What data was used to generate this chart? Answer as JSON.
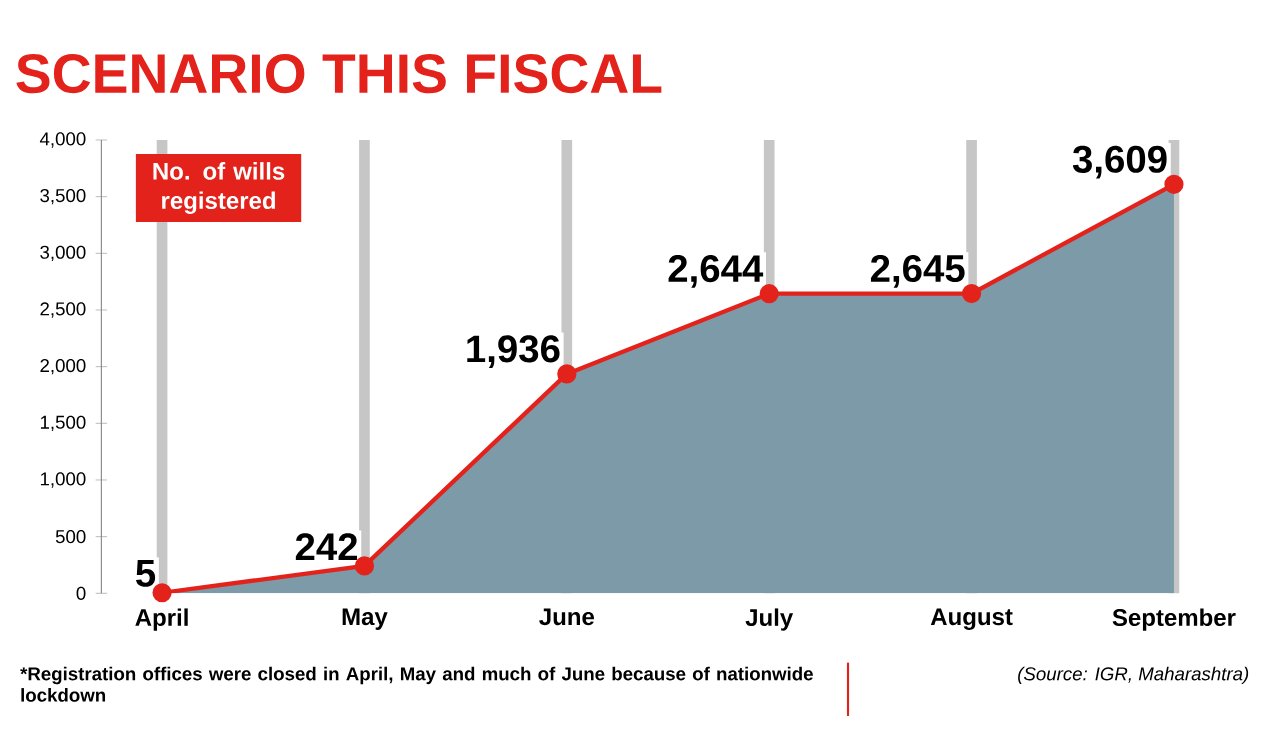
{
  "chart_data": {
    "type": "area",
    "title": "SCENARIO THIS FISCAL",
    "categories": [
      "April",
      "May",
      "June",
      "July",
      "August",
      "September"
    ],
    "series": [
      {
        "name": "No. of wills registered",
        "color": "#e3231b",
        "values": [
          5,
          242,
          1936,
          2644,
          2645,
          3609
        ]
      }
    ],
    "value_labels": [
      "5",
      "242",
      "1,936",
      "2,644",
      "2,645",
      "3,609"
    ],
    "ylim": [
      0,
      4000
    ],
    "yticks": [
      0,
      500,
      {
        "value": 1000,
        "label": "1,000"
      },
      {
        "value": 1500,
        "label": "1,500"
      },
      {
        "value": 2000,
        "label": "2,000"
      },
      {
        "value": 2500,
        "label": "2,500"
      },
      {
        "value": 3000,
        "label": "3,000"
      },
      {
        "value": 3500,
        "label": "3,500"
      },
      {
        "value": 4000,
        "label": "4,000"
      }
    ],
    "grid": "x",
    "marker": "circle",
    "annotations": [
      "*Registration offices were closed in April, May and much of June because of nationwide lockdown",
      "(Source: IGR, Maharashtra)"
    ]
  }
}
